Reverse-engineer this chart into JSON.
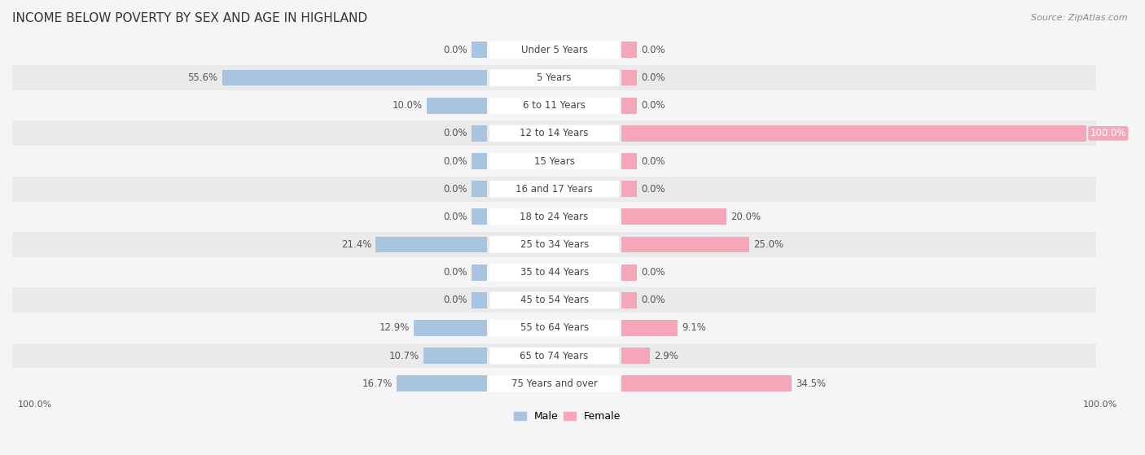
{
  "title": "INCOME BELOW POVERTY BY SEX AND AGE IN HIGHLAND",
  "source": "Source: ZipAtlas.com",
  "categories": [
    "Under 5 Years",
    "5 Years",
    "6 to 11 Years",
    "12 to 14 Years",
    "15 Years",
    "16 and 17 Years",
    "18 to 24 Years",
    "25 to 34 Years",
    "35 to 44 Years",
    "45 to 54 Years",
    "55 to 64 Years",
    "65 to 74 Years",
    "75 Years and over"
  ],
  "male_values": [
    0.0,
    55.6,
    10.0,
    0.0,
    0.0,
    0.0,
    0.0,
    21.4,
    0.0,
    0.0,
    12.9,
    10.7,
    16.7
  ],
  "female_values": [
    0.0,
    0.0,
    0.0,
    100.0,
    0.0,
    0.0,
    20.0,
    25.0,
    0.0,
    0.0,
    9.1,
    2.9,
    34.5
  ],
  "male_color": "#a8c4e0",
  "female_color": "#f4a7b9",
  "male_label": "Male",
  "female_label": "Female",
  "scale_max": 100.0,
  "title_fontsize": 11,
  "label_fontsize": 8.5,
  "value_fontsize": 8.5,
  "legend_fontsize": 9,
  "row_colors": [
    "#f5f5f5",
    "#eaeaea"
  ]
}
